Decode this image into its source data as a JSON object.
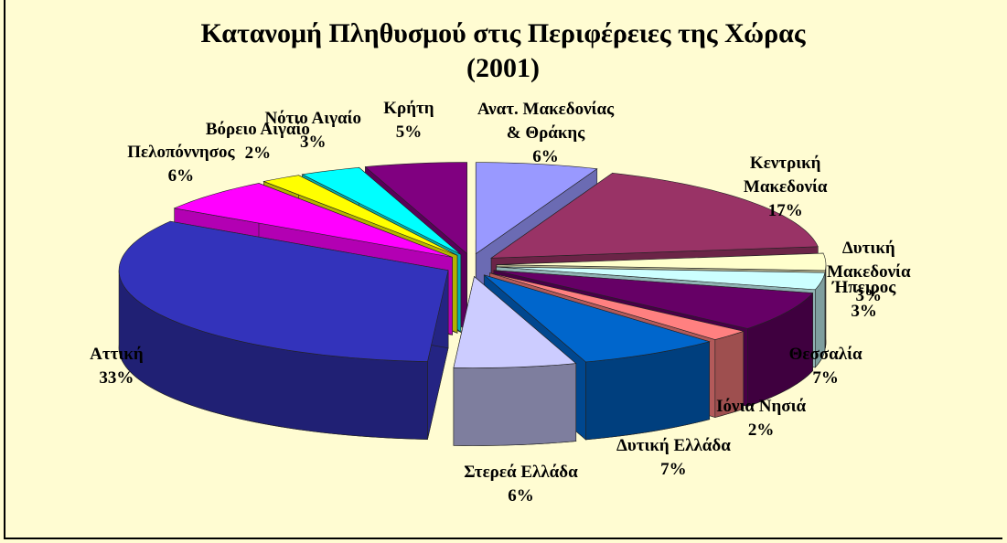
{
  "chart_data": {
    "type": "pie",
    "title": "Κατανομή Πληθυσμού στις Περιφέρειες της Χώρας (2001)",
    "categories": [
      "Ανατ. Μακεδονίας & Θράκης",
      "Κεντρική Μακεδονία",
      "Δυτική Μακεδονία",
      "Ήπειρος",
      "Θεσσαλία",
      "Ιόνια Νησιά",
      "Δυτική Ελλάδα",
      "Στερεά Ελλάδα",
      "Αττική",
      "Πελοπόννησος",
      "Βόρειο Αιγαίο",
      "Νότιο Αιγαίο",
      "Κρήτη"
    ],
    "values": [
      6,
      17,
      3,
      3,
      7,
      2,
      7,
      6,
      33,
      6,
      2,
      3,
      5
    ],
    "value_labels": [
      "6%",
      "17%",
      "3%",
      "3%",
      "7%",
      "2%",
      "7%",
      "6%",
      "33%",
      "6%",
      "2%",
      "3%",
      "5%"
    ],
    "colors": [
      "#9999ff",
      "#993366",
      "#ffffcc",
      "#ccffff",
      "#660066",
      "#ff8080",
      "#0066cc",
      "#ccccff",
      "#3333bb",
      "#ff00ff",
      "#ffff00",
      "#00ffff",
      "#800080"
    ]
  }
}
